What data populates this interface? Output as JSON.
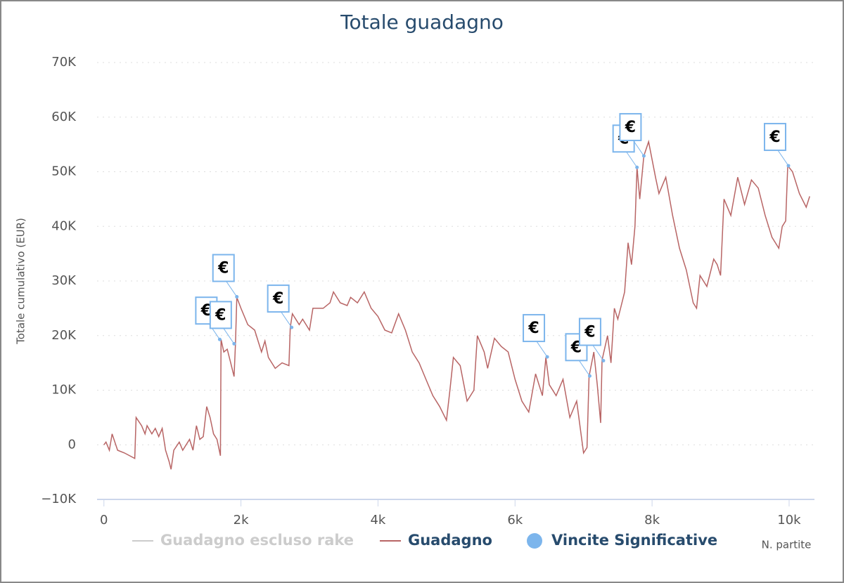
{
  "chart_data": {
    "type": "line",
    "title": "Totale guadagno",
    "xlabel": "N. partite",
    "ylabel": "Totale cumulativo (EUR)",
    "xlim": [
      -100,
      10370
    ],
    "ylim": [
      -10000,
      70000
    ],
    "xticks": [
      0,
      {
        "value": 2000,
        "label": "2k"
      },
      {
        "value": 4000,
        "label": "4k"
      },
      {
        "value": 6000,
        "label": "6k"
      },
      {
        "value": 8000,
        "label": "8k"
      },
      {
        "value": 10000,
        "label": "10k"
      }
    ],
    "yticks": [
      {
        "value": -10000,
        "label": "−10K"
      },
      0,
      {
        "value": 10000,
        "label": "10K"
      },
      {
        "value": 20000,
        "label": "20K"
      },
      {
        "value": 30000,
        "label": "30K"
      },
      {
        "value": 40000,
        "label": "40K"
      },
      {
        "value": 50000,
        "label": "50K"
      },
      {
        "value": 60000,
        "label": "60K"
      },
      {
        "value": 70000,
        "label": "70K"
      }
    ],
    "grid": true,
    "flag_text": "€",
    "series": [
      {
        "name": "Guadagno escluso rake",
        "color": "#cccccc",
        "visible": false
      },
      {
        "name": "Guadagno",
        "color": "#b86565",
        "x": [
          0,
          30,
          80,
          120,
          200,
          300,
          450,
          470,
          550,
          600,
          630,
          700,
          750,
          800,
          850,
          900,
          950,
          980,
          1020,
          1100,
          1150,
          1200,
          1250,
          1300,
          1350,
          1400,
          1450,
          1500,
          1550,
          1600,
          1650,
          1700,
          1710,
          1750,
          1800,
          1850,
          1900,
          1920,
          1940,
          2000,
          2100,
          2200,
          2300,
          2350,
          2400,
          2500,
          2600,
          2700,
          2720,
          2750,
          2850,
          2900,
          3000,
          3050,
          3200,
          3300,
          3350,
          3450,
          3550,
          3600,
          3700,
          3800,
          3900,
          4000,
          4100,
          4200,
          4300,
          4400,
          4500,
          4600,
          4700,
          4800,
          4900,
          5000,
          5050,
          5100,
          5200,
          5300,
          5400,
          5450,
          5550,
          5600,
          5700,
          5800,
          5900,
          6000,
          6100,
          6200,
          6300,
          6400,
          6450,
          6500,
          6600,
          6700,
          6800,
          6900,
          7000,
          7050,
          7080,
          7150,
          7200,
          7250,
          7270,
          7350,
          7400,
          7450,
          7500,
          7550,
          7600,
          7650,
          7700,
          7750,
          7780,
          7820,
          7880,
          7950,
          8050,
          8100,
          8200,
          8300,
          8400,
          8500,
          8600,
          8650,
          8700,
          8800,
          8900,
          8950,
          9000,
          9050,
          9150,
          9250,
          9350,
          9450,
          9550,
          9650,
          9750,
          9850,
          9900,
          9950,
          9980,
          10050,
          10150,
          10250,
          10300
        ],
        "values": [
          0,
          500,
          -1000,
          2000,
          -1000,
          -1500,
          -2500,
          5000,
          3500,
          2000,
          3500,
          2000,
          3000,
          1500,
          3000,
          -1000,
          -3000,
          -4500,
          -1000,
          500,
          -1000,
          0,
          1000,
          -1000,
          3500,
          1000,
          1500,
          7000,
          5000,
          2000,
          1000,
          -2000,
          19300,
          17000,
          17500,
          15000,
          12500,
          18500,
          27000,
          25000,
          22000,
          21000,
          17000,
          19000,
          16000,
          14000,
          15000,
          14500,
          21500,
          24000,
          22000,
          23000,
          21000,
          25000,
          25000,
          26000,
          28000,
          26000,
          25500,
          27000,
          26000,
          28000,
          25000,
          23500,
          21000,
          20500,
          24000,
          21000,
          17000,
          15000,
          12000,
          9000,
          7000,
          4500,
          10000,
          16000,
          14500,
          8000,
          10000,
          20000,
          17000,
          14000,
          19500,
          18000,
          17000,
          12000,
          8000,
          6000,
          13000,
          9000,
          16000,
          11000,
          9000,
          12000,
          5000,
          8000,
          -1500,
          -500,
          12500,
          17000,
          11000,
          4000,
          15500,
          20000,
          15000,
          25000,
          23000,
          25500,
          28000,
          37000,
          33000,
          40000,
          50800,
          45000,
          52900,
          55500,
          49000,
          46000,
          49000,
          42000,
          36000,
          32000,
          26000,
          25000,
          31000,
          29000,
          34000,
          33000,
          31000,
          45000,
          42000,
          49000,
          44000,
          48500,
          47000,
          42000,
          38000,
          36000,
          40000,
          41000,
          51100,
          50000,
          46000,
          43500,
          45500
        ]
      },
      {
        "name": "Vincite Significative",
        "color": "#7cb5ec",
        "x": [
          1690,
          1900,
          1940,
          2740,
          6470,
          7090,
          7290,
          7780,
          7880,
          9990
        ],
        "values": [
          19300,
          18500,
          27100,
          21500,
          16100,
          12600,
          15400,
          50800,
          52900,
          51100
        ]
      }
    ]
  }
}
